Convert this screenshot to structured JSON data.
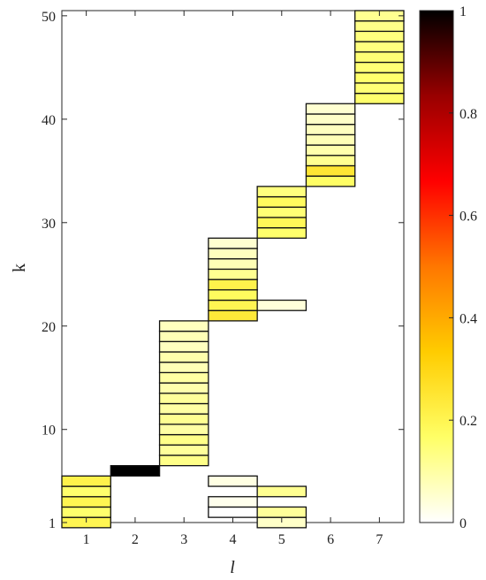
{
  "chart_data": {
    "type": "heatmap",
    "xlabel": "l",
    "ylabel": "k",
    "xlim": [
      0.5,
      7.5
    ],
    "ylim": [
      1,
      50.5
    ],
    "x_ticks": [
      1,
      2,
      3,
      4,
      5,
      6,
      7
    ],
    "y_ticks": [
      1,
      10,
      20,
      30,
      40,
      50
    ],
    "colorbar": {
      "min": 0,
      "max": 1,
      "ticks": [
        0,
        0.2,
        0.4,
        0.6,
        0.8,
        1
      ],
      "colormap": "hot (reversed)",
      "stops": [
        "#ffffff",
        "#ffff66",
        "#ffcc00",
        "#ff7700",
        "#ff0000",
        "#990000",
        "#000000"
      ]
    },
    "columns": [
      {
        "l": 1,
        "cells": [
          {
            "k": 1,
            "v": 0.2
          },
          {
            "k": 2,
            "v": 0.16
          },
          {
            "k": 3,
            "v": 0.2
          },
          {
            "k": 4,
            "v": 0.16
          },
          {
            "k": 5,
            "v": 0.21
          }
        ]
      },
      {
        "l": 2,
        "cells": [
          {
            "k": 6,
            "v": 1.0
          }
        ]
      },
      {
        "l": 3,
        "cells": [
          {
            "k": 7,
            "v": 0.13
          },
          {
            "k": 8,
            "v": 0.11
          },
          {
            "k": 9,
            "v": 0.13
          },
          {
            "k": 10,
            "v": 0.1
          },
          {
            "k": 11,
            "v": 0.12
          },
          {
            "k": 12,
            "v": 0.1
          },
          {
            "k": 13,
            "v": 0.11
          },
          {
            "k": 14,
            "v": 0.09
          },
          {
            "k": 15,
            "v": 0.1
          },
          {
            "k": 16,
            "v": 0.08
          },
          {
            "k": 17,
            "v": 0.09
          },
          {
            "k": 18,
            "v": 0.07
          },
          {
            "k": 19,
            "v": 0.08
          },
          {
            "k": 20,
            "v": 0.07
          }
        ]
      },
      {
        "l": 4,
        "cells": [
          {
            "k": 2,
            "v": 0.0
          },
          {
            "k": 3,
            "v": 0.02
          },
          {
            "k": 5,
            "v": 0.03
          },
          {
            "k": 21,
            "v": 0.24
          },
          {
            "k": 22,
            "v": 0.2
          },
          {
            "k": 23,
            "v": 0.18
          },
          {
            "k": 24,
            "v": 0.21
          },
          {
            "k": 25,
            "v": 0.12
          },
          {
            "k": 26,
            "v": 0.08
          },
          {
            "k": 27,
            "v": 0.07
          },
          {
            "k": 28,
            "v": 0.05
          }
        ]
      },
      {
        "l": 5,
        "cells": [
          {
            "k": 1,
            "v": 0.06
          },
          {
            "k": 2,
            "v": 0.11
          },
          {
            "k": 4,
            "v": 0.12
          },
          {
            "k": 22,
            "v": 0.04
          },
          {
            "k": 29,
            "v": 0.16
          },
          {
            "k": 30,
            "v": 0.19
          },
          {
            "k": 31,
            "v": 0.15
          },
          {
            "k": 32,
            "v": 0.18
          },
          {
            "k": 33,
            "v": 0.14
          }
        ]
      },
      {
        "l": 6,
        "cells": [
          {
            "k": 34,
            "v": 0.17
          },
          {
            "k": 35,
            "v": 0.25
          },
          {
            "k": 36,
            "v": 0.12
          },
          {
            "k": 37,
            "v": 0.09
          },
          {
            "k": 38,
            "v": 0.08
          },
          {
            "k": 39,
            "v": 0.07
          },
          {
            "k": 40,
            "v": 0.06
          },
          {
            "k": 41,
            "v": 0.05
          }
        ]
      },
      {
        "l": 7,
        "cells": [
          {
            "k": 42,
            "v": 0.16
          },
          {
            "k": 43,
            "v": 0.15
          },
          {
            "k": 44,
            "v": 0.16
          },
          {
            "k": 45,
            "v": 0.15
          },
          {
            "k": 46,
            "v": 0.15
          },
          {
            "k": 47,
            "v": 0.14
          },
          {
            "k": 48,
            "v": 0.14
          },
          {
            "k": 49,
            "v": 0.13
          },
          {
            "k": 50,
            "v": 0.12
          }
        ]
      }
    ]
  }
}
